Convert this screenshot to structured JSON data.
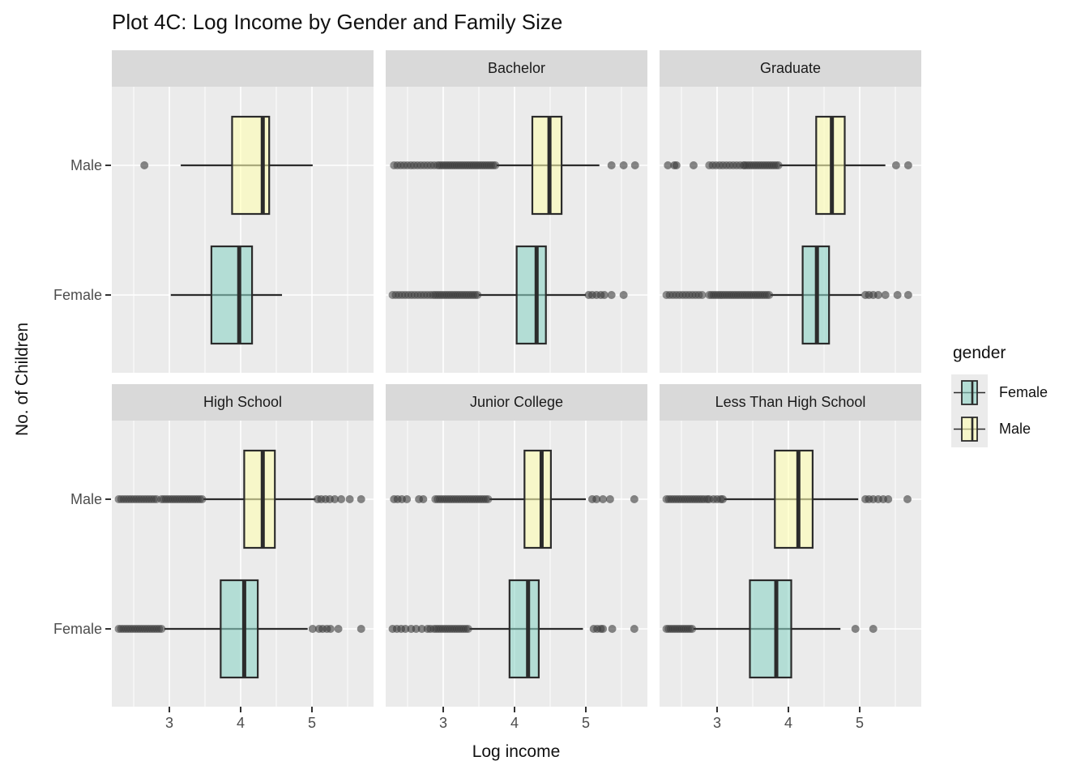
{
  "title": "Plot 4C: Log Income by Gender and Family Size",
  "axes": {
    "x_label": "Log income",
    "y_label": "No. of Children",
    "x_ticks": [
      3,
      4,
      5
    ],
    "x_minor_ticks": [
      2.5,
      3.5,
      4.5,
      5.5
    ],
    "x_domain": [
      2.19,
      5.86
    ],
    "y_categories": [
      "Male",
      "Female"
    ]
  },
  "legend": {
    "title": "gender",
    "items": [
      {
        "label": "Female",
        "color": "#8DD3C7"
      },
      {
        "label": "Male",
        "color": "#FFFFB3"
      }
    ]
  },
  "colors": {
    "panel_bg": "#EBEBEB",
    "strip_bg": "#D9D9D9",
    "grid": "#FFFFFF",
    "box_stroke": "#2B2B2B",
    "outlier": "#3A3A3A",
    "axis_text": "#4D4D4D",
    "female_fill": "#8DD3C7",
    "male_fill": "#FFFFB3",
    "fill_alpha": 0.6
  },
  "chart_data": {
    "type": "boxplot-faceted",
    "orientation": "horizontal",
    "facet_layout": [
      [
        "",
        "Bachelor",
        "Graduate"
      ],
      [
        "High School",
        "Junior College",
        "Less Than High School"
      ]
    ],
    "x_domain": [
      2.19,
      5.86
    ],
    "facets": [
      {
        "label": "",
        "series": [
          {
            "gender": "Male",
            "lo": 3.16,
            "q1": 3.88,
            "med": 4.31,
            "q3": 4.4,
            "hi": 5.01,
            "out_lo": [
              2.65
            ],
            "out_hi": [],
            "bands_lo": []
          },
          {
            "gender": "Female",
            "lo": 3.02,
            "q1": 3.59,
            "med": 3.98,
            "q3": 4.16,
            "hi": 4.58,
            "out_lo": [],
            "out_hi": [],
            "bands_lo": []
          }
        ]
      },
      {
        "label": "Bachelor",
        "series": [
          {
            "gender": "Male",
            "lo": 3.75,
            "q1": 4.25,
            "med": 4.49,
            "q3": 4.66,
            "hi": 5.19,
            "out_lo": [],
            "out_hi": [
              5.36,
              5.53,
              5.69
            ],
            "bands_lo": [
              [
                2.31,
                2.92,
                14
              ],
              [
                2.95,
                3.73,
                27
              ]
            ]
          },
          {
            "gender": "Female",
            "lo": 3.5,
            "q1": 4.03,
            "med": 4.31,
            "q3": 4.44,
            "hi": 5.0,
            "out_lo": [],
            "out_hi": [
              5.04,
              5.09,
              5.15,
              5.21,
              5.26,
              5.36,
              5.53
            ],
            "bands_lo": [
              [
                2.29,
                2.82,
                13
              ],
              [
                2.86,
                3.48,
                21
              ]
            ]
          }
        ]
      },
      {
        "label": "Graduate",
        "series": [
          {
            "gender": "Male",
            "lo": 3.88,
            "q1": 4.39,
            "med": 4.61,
            "q3": 4.79,
            "hi": 5.36,
            "out_lo": [
              2.31,
              2.4,
              2.43,
              2.67
            ],
            "out_hi": [
              5.51,
              5.68
            ],
            "bands_lo": [
              [
                2.89,
                3.37,
                11
              ],
              [
                3.39,
                3.86,
                16
              ]
            ]
          },
          {
            "gender": "Female",
            "lo": 3.75,
            "q1": 4.2,
            "med": 4.4,
            "q3": 4.57,
            "hi": 5.03,
            "out_lo": [],
            "out_hi": [
              5.08,
              5.13,
              5.19,
              5.26,
              5.36,
              5.53,
              5.68
            ],
            "bands_lo": [
              [
                2.29,
                2.79,
                12
              ],
              [
                2.89,
                3.73,
                28
              ]
            ]
          }
        ]
      },
      {
        "label": "High School",
        "series": [
          {
            "gender": "Male",
            "lo": 3.48,
            "q1": 4.05,
            "med": 4.31,
            "q3": 4.48,
            "hi": 5.05,
            "out_lo": [],
            "out_hi": [
              5.08,
              5.13,
              5.19,
              5.25,
              5.32,
              5.41,
              5.53,
              5.69
            ],
            "bands_lo": [
              [
                2.29,
                2.82,
                16
              ],
              [
                2.89,
                3.46,
                19
              ]
            ]
          },
          {
            "gender": "Female",
            "lo": 2.93,
            "q1": 3.72,
            "med": 4.05,
            "q3": 4.24,
            "hi": 4.94,
            "out_lo": [],
            "out_hi": [
              5.01,
              5.1,
              5.15,
              5.21,
              5.26,
              5.37,
              5.69
            ],
            "bands_lo": [
              [
                2.29,
                2.89,
                19
              ]
            ]
          }
        ]
      },
      {
        "label": "Junior College",
        "series": [
          {
            "gender": "Male",
            "lo": 3.65,
            "q1": 4.14,
            "med": 4.38,
            "q3": 4.51,
            "hi": 5.0,
            "out_lo": [
              2.31,
              2.36,
              2.42,
              2.49,
              2.66,
              2.72
            ],
            "out_hi": [
              5.09,
              5.15,
              5.24,
              5.34,
              5.68
            ],
            "bands_lo": [
              [
                2.89,
                3.63,
                24
              ]
            ]
          },
          {
            "gender": "Female",
            "lo": 3.37,
            "q1": 3.93,
            "med": 4.19,
            "q3": 4.34,
            "hi": 4.96,
            "out_lo": [
              2.29,
              2.35,
              2.41,
              2.47,
              2.55,
              2.62,
              2.7,
              2.78,
              2.82
            ],
            "out_hi": [
              5.11,
              5.16,
              5.21,
              5.24,
              5.37,
              5.68
            ],
            "bands_lo": [
              [
                2.87,
                3.35,
                16
              ]
            ]
          }
        ]
      },
      {
        "label": "Less Than High School",
        "series": [
          {
            "gender": "Male",
            "lo": 3.1,
            "q1": 3.81,
            "med": 4.14,
            "q3": 4.34,
            "hi": 4.98,
            "out_lo": [
              2.86,
              2.89,
              2.95,
              3.0,
              3.05,
              3.08
            ],
            "out_hi": [
              5.08,
              5.13,
              5.19,
              5.26,
              5.33,
              5.4,
              5.67
            ],
            "bands_lo": [
              [
                2.29,
                2.82,
                17
              ]
            ]
          },
          {
            "gender": "Female",
            "lo": 2.67,
            "q1": 3.46,
            "med": 3.83,
            "q3": 4.04,
            "hi": 4.73,
            "out_lo": [],
            "out_hi": [
              4.94,
              5.19
            ],
            "bands_lo": [
              [
                2.29,
                2.65,
                13
              ]
            ]
          }
        ]
      }
    ]
  }
}
